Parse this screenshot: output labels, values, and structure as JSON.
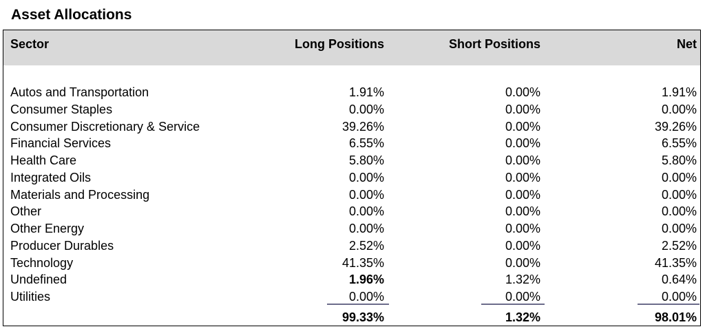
{
  "title": "Asset Allocations",
  "header": {
    "sector": "Sector",
    "long": "Long Positions",
    "short": "Short Positions",
    "net": "Net"
  },
  "rows": [
    {
      "sector": "Autos and Transportation",
      "long": "1.91%",
      "short": "0.00%",
      "net": "1.91%"
    },
    {
      "sector": "Consumer Staples",
      "long": "0.00%",
      "short": "0.00%",
      "net": "0.00%"
    },
    {
      "sector": "Consumer Discretionary & Service",
      "long": "39.26%",
      "short": "0.00%",
      "net": "39.26%"
    },
    {
      "sector": "Financial Services",
      "long": "6.55%",
      "short": "0.00%",
      "net": "6.55%"
    },
    {
      "sector": "Health Care",
      "long": "5.80%",
      "short": "0.00%",
      "net": "5.80%"
    },
    {
      "sector": "Integrated Oils",
      "long": "0.00%",
      "short": "0.00%",
      "net": "0.00%"
    },
    {
      "sector": "Materials and Processing",
      "long": "0.00%",
      "short": "0.00%",
      "net": "0.00%"
    },
    {
      "sector": "Other",
      "long": "0.00%",
      "short": "0.00%",
      "net": "0.00%"
    },
    {
      "sector": "Other Energy",
      "long": "0.00%",
      "short": "0.00%",
      "net": "0.00%"
    },
    {
      "sector": "Producer Durables",
      "long": "2.52%",
      "short": "0.00%",
      "net": "2.52%"
    },
    {
      "sector": "Technology",
      "long": "41.35%",
      "short": "0.00%",
      "net": "41.35%"
    },
    {
      "sector": "Undefined",
      "long": "1.96%",
      "short": "1.32%",
      "net": "0.64%",
      "long_bold": true
    },
    {
      "sector": "Utilities",
      "long": "0.00%",
      "short": "0.00%",
      "net": "0.00%"
    }
  ],
  "totals": {
    "long": "99.33%",
    "short": "1.32%",
    "net": "98.01%"
  }
}
